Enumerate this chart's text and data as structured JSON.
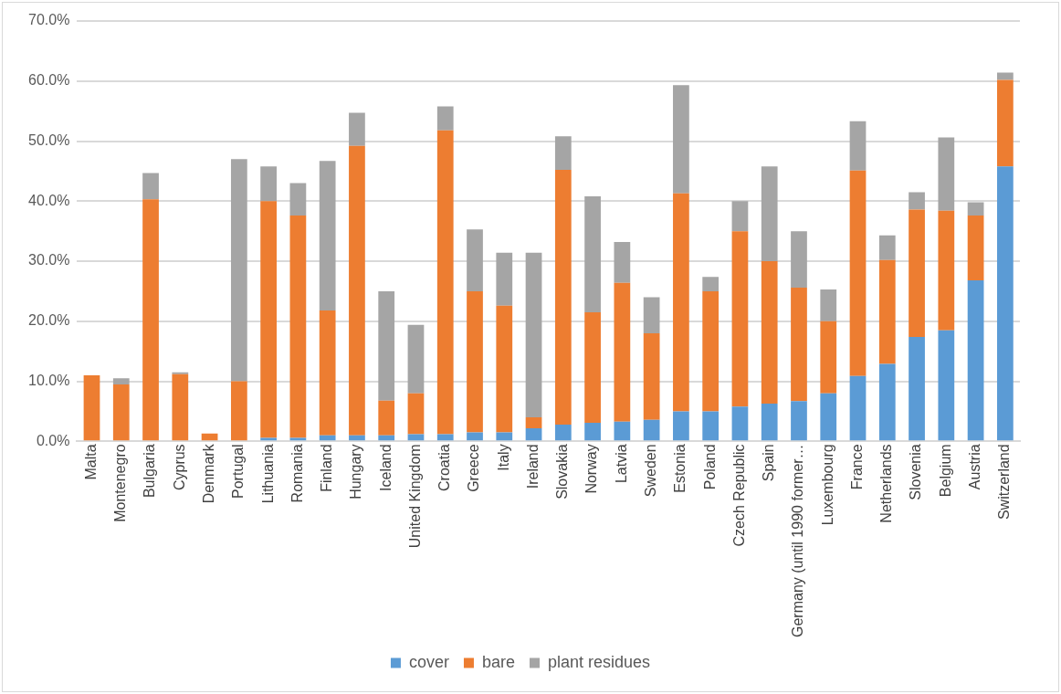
{
  "chart_data": {
    "type": "bar",
    "stacked": true,
    "categories": [
      "Malta",
      "Montenegro",
      "Bulgaria",
      "Cyprus",
      "Denmark",
      "Portugal",
      "Lithuania",
      "Romania",
      "Finland",
      "Hungary",
      "Iceland",
      "United Kingdom",
      "Croatia",
      "Greece",
      "Italy",
      "Ireland",
      "Slovakia",
      "Norway",
      "Latvia",
      "Sweden",
      "Estonia",
      "Poland",
      "Czech Republic",
      "Spain",
      "Germany (until 1990 former…",
      "Luxembourg",
      "France",
      "Netherlands",
      "Slovenia",
      "Belgium",
      "Austria",
      "Switzerland"
    ],
    "series": [
      {
        "name": "cover",
        "color": "#5b9bd5",
        "values": [
          0,
          0,
          0,
          0,
          0,
          0,
          0.6,
          0.6,
          1,
          1,
          1,
          1.2,
          1.2,
          1.5,
          1.5,
          2.2,
          2.8,
          3.1,
          3.3,
          3.6,
          5,
          5,
          5.8,
          6.3,
          6.7,
          8,
          10.9,
          12.9,
          17.4,
          18.5,
          26.8,
          45.8
        ]
      },
      {
        "name": "bare",
        "color": "#ed7d31",
        "values": [
          11,
          9.5,
          40.3,
          11.2,
          1.3,
          10,
          39.4,
          37,
          20.8,
          48.2,
          5.8,
          6.8,
          50.6,
          23.5,
          21.1,
          1.8,
          42.4,
          18.4,
          23.1,
          14.4,
          36.3,
          20,
          29.2,
          23.7,
          18.9,
          12,
          34.2,
          17.3,
          21.2,
          19.9,
          10.8,
          14.4
        ]
      },
      {
        "name": "plant residues",
        "color": "#a5a5a5",
        "values": [
          0,
          1,
          4.4,
          0.3,
          null,
          37,
          5.8,
          5.4,
          24.9,
          5.5,
          18.2,
          11.4,
          4,
          10.3,
          8.8,
          27.4,
          5.6,
          19.3,
          6.8,
          6,
          18,
          2.4,
          5,
          15.8,
          9.4,
          5.3,
          8.2,
          4.1,
          2.9,
          12.2,
          2.2,
          1.2
        ]
      }
    ],
    "ylim": [
      0,
      70
    ],
    "yticks": [
      {
        "value": 0,
        "label": "0.0%"
      },
      {
        "value": 10,
        "label": "10.0%"
      },
      {
        "value": 20,
        "label": "20.0%"
      },
      {
        "value": 30,
        "label": "30.0%"
      },
      {
        "value": 40,
        "label": "40.0%"
      },
      {
        "value": 50,
        "label": "50.0%"
      },
      {
        "value": 60,
        "label": "60.0%"
      },
      {
        "value": 70,
        "label": "70.0%"
      }
    ],
    "grid": "y",
    "legend": "bottom"
  }
}
